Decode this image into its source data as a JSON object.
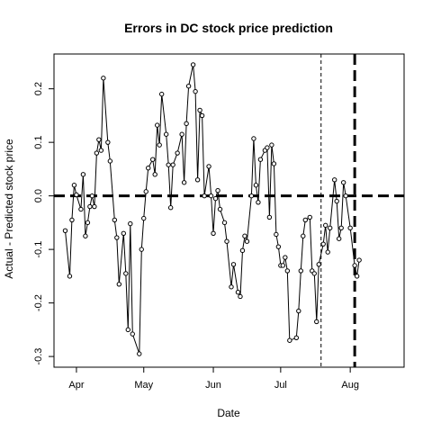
{
  "chart_data": {
    "type": "line",
    "title": "Errors in DC stock price prediction",
    "xlabel": "Date",
    "ylabel": "Actual - Predicted stock price",
    "xlim": [
      "2016-03-22",
      "2016-08-25"
    ],
    "ylim": [
      -0.32,
      0.265
    ],
    "x_ticks": [
      {
        "label": "Apr",
        "date": "2016-04-01"
      },
      {
        "label": "May",
        "date": "2016-05-01"
      },
      {
        "label": "Jun",
        "date": "2016-06-01"
      },
      {
        "label": "Jul",
        "date": "2016-07-01"
      },
      {
        "label": "Aug",
        "date": "2016-08-01"
      }
    ],
    "y_ticks": [
      -0.3,
      -0.2,
      -0.1,
      0.0,
      0.1,
      0.2
    ],
    "y_tick_labels": [
      "-0.3",
      "-0.2",
      "-0.1",
      "0.0",
      "0.1",
      "0.2"
    ],
    "grid": false,
    "reference_lines": [
      {
        "orientation": "horizontal",
        "value": 0.0,
        "style": "thick-dashed"
      },
      {
        "orientation": "vertical",
        "date": "2016-07-19",
        "style": "thin-dashed"
      },
      {
        "orientation": "vertical",
        "date": "2016-08-03",
        "style": "thick-dashed"
      }
    ],
    "series": [
      {
        "marker": "open-circle",
        "points": [
          {
            "x": "2016-03-27",
            "y": -0.065
          },
          {
            "x": "2016-03-29",
            "y": -0.15
          },
          {
            "x": "2016-03-30",
            "y": -0.045
          },
          {
            "x": "2016-03-31",
            "y": 0.02
          },
          {
            "x": "2016-04-01",
            "y": 0.002
          },
          {
            "x": "2016-04-03",
            "y": -0.025
          },
          {
            "x": "2016-04-04",
            "y": 0.04
          },
          {
            "x": "2016-04-05",
            "y": -0.075
          },
          {
            "x": "2016-04-06",
            "y": -0.05
          },
          {
            "x": "2016-04-07",
            "y": -0.02
          },
          {
            "x": "2016-04-08",
            "y": 0.0
          },
          {
            "x": "2016-04-09",
            "y": -0.02
          },
          {
            "x": "2016-04-10",
            "y": 0.08
          },
          {
            "x": "2016-04-11",
            "y": 0.105
          },
          {
            "x": "2016-04-12",
            "y": 0.085
          },
          {
            "x": "2016-04-13",
            "y": 0.22
          },
          {
            "x": "2016-04-15",
            "y": 0.1
          },
          {
            "x": "2016-04-16",
            "y": 0.065
          },
          {
            "x": "2016-04-18",
            "y": -0.045
          },
          {
            "x": "2016-04-19",
            "y": -0.078
          },
          {
            "x": "2016-04-20",
            "y": -0.165
          },
          {
            "x": "2016-04-22",
            "y": -0.07
          },
          {
            "x": "2016-04-23",
            "y": -0.145
          },
          {
            "x": "2016-04-24",
            "y": -0.25
          },
          {
            "x": "2016-04-25",
            "y": -0.052
          },
          {
            "x": "2016-04-26",
            "y": -0.258
          },
          {
            "x": "2016-04-29",
            "y": -0.295
          },
          {
            "x": "2016-04-30",
            "y": -0.1
          },
          {
            "x": "2016-05-01",
            "y": -0.042
          },
          {
            "x": "2016-05-02",
            "y": 0.008
          },
          {
            "x": "2016-05-03",
            "y": 0.052
          },
          {
            "x": "2016-05-05",
            "y": 0.068
          },
          {
            "x": "2016-05-06",
            "y": 0.04
          },
          {
            "x": "2016-05-07",
            "y": 0.132
          },
          {
            "x": "2016-05-08",
            "y": 0.095
          },
          {
            "x": "2016-05-09",
            "y": 0.19
          },
          {
            "x": "2016-05-11",
            "y": 0.115
          },
          {
            "x": "2016-05-12",
            "y": 0.058
          },
          {
            "x": "2016-05-13",
            "y": -0.022
          },
          {
            "x": "2016-05-14",
            "y": 0.058
          },
          {
            "x": "2016-05-16",
            "y": 0.08
          },
          {
            "x": "2016-05-18",
            "y": 0.115
          },
          {
            "x": "2016-05-19",
            "y": 0.025
          },
          {
            "x": "2016-05-20",
            "y": 0.135
          },
          {
            "x": "2016-05-21",
            "y": 0.205
          },
          {
            "x": "2016-05-23",
            "y": 0.245
          },
          {
            "x": "2016-05-24",
            "y": 0.195
          },
          {
            "x": "2016-05-25",
            "y": 0.03
          },
          {
            "x": "2016-05-26",
            "y": 0.16
          },
          {
            "x": "2016-05-27",
            "y": 0.15
          },
          {
            "x": "2016-05-28",
            "y": 0.0
          },
          {
            "x": "2016-05-30",
            "y": 0.055
          },
          {
            "x": "2016-05-31",
            "y": 0.0
          },
          {
            "x": "2016-06-01",
            "y": -0.07
          },
          {
            "x": "2016-06-02",
            "y": -0.005
          },
          {
            "x": "2016-06-03",
            "y": 0.01
          },
          {
            "x": "2016-06-04",
            "y": -0.025
          },
          {
            "x": "2016-06-06",
            "y": -0.05
          },
          {
            "x": "2016-06-07",
            "y": -0.085
          },
          {
            "x": "2016-06-09",
            "y": -0.17
          },
          {
            "x": "2016-06-10",
            "y": -0.128
          },
          {
            "x": "2016-06-12",
            "y": -0.18
          },
          {
            "x": "2016-06-13",
            "y": -0.188
          },
          {
            "x": "2016-06-14",
            "y": -0.102
          },
          {
            "x": "2016-06-15",
            "y": -0.075
          },
          {
            "x": "2016-06-16",
            "y": -0.085
          },
          {
            "x": "2016-06-18",
            "y": 0.0
          },
          {
            "x": "2016-06-19",
            "y": 0.107
          },
          {
            "x": "2016-06-20",
            "y": 0.02
          },
          {
            "x": "2016-06-21",
            "y": -0.012
          },
          {
            "x": "2016-06-22",
            "y": 0.068
          },
          {
            "x": "2016-06-24",
            "y": 0.085
          },
          {
            "x": "2016-06-25",
            "y": 0.09
          },
          {
            "x": "2016-06-26",
            "y": -0.04
          },
          {
            "x": "2016-06-27",
            "y": 0.095
          },
          {
            "x": "2016-06-28",
            "y": 0.06
          },
          {
            "x": "2016-06-29",
            "y": -0.072
          },
          {
            "x": "2016-06-30",
            "y": -0.095
          },
          {
            "x": "2016-07-01",
            "y": -0.13
          },
          {
            "x": "2016-07-02",
            "y": -0.13
          },
          {
            "x": "2016-07-03",
            "y": -0.115
          },
          {
            "x": "2016-07-04",
            "y": -0.14
          },
          {
            "x": "2016-07-05",
            "y": -0.27
          },
          {
            "x": "2016-07-08",
            "y": -0.265
          },
          {
            "x": "2016-07-09",
            "y": -0.215
          },
          {
            "x": "2016-07-10",
            "y": -0.14
          },
          {
            "x": "2016-07-11",
            "y": -0.075
          },
          {
            "x": "2016-07-12",
            "y": -0.045
          },
          {
            "x": "2016-07-14",
            "y": -0.04
          },
          {
            "x": "2016-07-15",
            "y": -0.14
          },
          {
            "x": "2016-07-16",
            "y": -0.145
          },
          {
            "x": "2016-07-17",
            "y": -0.235
          },
          {
            "x": "2016-07-18",
            "y": -0.128
          },
          {
            "x": "2016-07-20",
            "y": -0.09
          },
          {
            "x": "2016-07-21",
            "y": -0.055
          },
          {
            "x": "2016-07-22",
            "y": -0.105
          },
          {
            "x": "2016-07-23",
            "y": -0.06
          },
          {
            "x": "2016-07-25",
            "y": 0.03
          },
          {
            "x": "2016-07-26",
            "y": -0.01
          },
          {
            "x": "2016-07-27",
            "y": -0.08
          },
          {
            "x": "2016-07-28",
            "y": -0.06
          },
          {
            "x": "2016-07-29",
            "y": 0.025
          },
          {
            "x": "2016-07-30",
            "y": 0.0
          },
          {
            "x": "2016-08-01",
            "y": -0.06
          },
          {
            "x": "2016-08-03",
            "y": -0.13
          },
          {
            "x": "2016-08-04",
            "y": -0.15
          },
          {
            "x": "2016-08-05",
            "y": -0.12
          }
        ]
      }
    ]
  }
}
